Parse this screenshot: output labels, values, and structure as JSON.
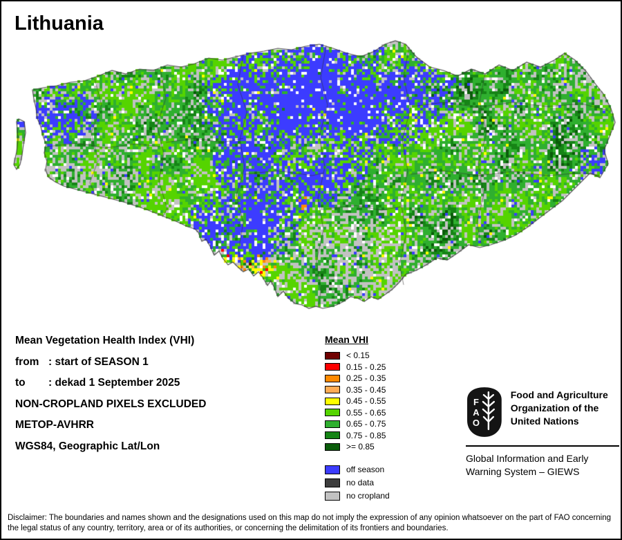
{
  "title": "Lithuania",
  "info": {
    "heading": "Mean Vegetation Health Index (VHI)",
    "from_label": "from",
    "from_value": ": start of SEASON 1",
    "to_label": "to",
    "to_value": ": dekad 1 September 2025",
    "excluded": "NON-CROPLAND PIXELS EXCLUDED",
    "sensor": "METOP-AVHRR",
    "projection": "WGS84, Geographic Lat/Lon"
  },
  "legend": {
    "title": "Mean VHI",
    "classes": [
      {
        "label": "< 0.15",
        "color": "#700000"
      },
      {
        "label": "0.15 - 0.25",
        "color": "#FF0000"
      },
      {
        "label": "0.25 - 0.35",
        "color": "#FF8A00"
      },
      {
        "label": "0.35 - 0.45",
        "color": "#FFAC55"
      },
      {
        "label": "0.45 - 0.55",
        "color": "#FFFF00"
      },
      {
        "label": "0.55 - 0.65",
        "color": "#55D400"
      },
      {
        "label": "0.65 - 0.75",
        "color": "#2FAF2F"
      },
      {
        "label": "0.75 - 0.85",
        "color": "#168416"
      },
      {
        "label": ">= 0.85",
        "color": "#0A5C0A"
      }
    ],
    "extras": [
      {
        "label": "off season",
        "color": "#3C3CFF"
      },
      {
        "label": "no data",
        "color": "#3D3D3D"
      },
      {
        "label": "no cropland",
        "color": "#C2C2C2"
      }
    ]
  },
  "footer": {
    "fao_letters": [
      "F",
      "A",
      "O"
    ],
    "fao_name": "Food and Agriculture Organization of the United Nations",
    "giews": "Global Information and Early Warning System – GIEWS"
  },
  "disclaimer": "Disclaimer: The boundaries and names shown and the designations used on this map do not imply the expression of any opinion whatsoever on the part of FAO concerning the legal status of any country, territory, area or of its authorities, or concerning the delimitation of its frontiers and boundaries."
}
